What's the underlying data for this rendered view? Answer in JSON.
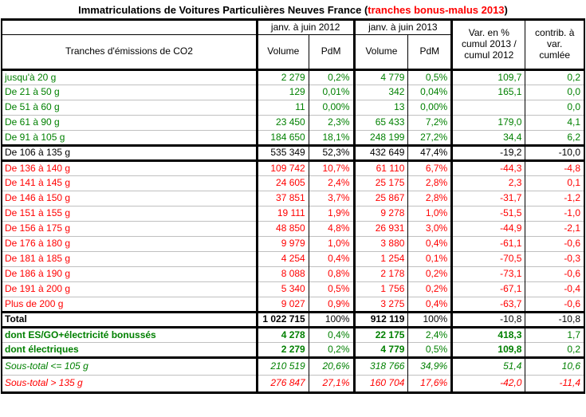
{
  "title": {
    "prefix": "Immatriculations de Voitures Particulières Neuves France (",
    "highlight": "tranches bonus-malus 2013",
    "suffix": ")"
  },
  "header": {
    "tranches": "Tranches d'émissions de CO2",
    "period_2012": "janv. à juin 2012",
    "period_2013": "janv. à juin 2013",
    "volume": "Volume",
    "pdm": "PdM",
    "var": "Var. en %\ncumul 2013 /\ncumul 2012",
    "contrib": "contrib. à\nvar.\ncumlée"
  },
  "colors": {
    "bonus_green": "#008000",
    "malus_red": "#ff0000",
    "neutral_black": "#000000",
    "gridline_gray": "#c0c0c0"
  },
  "chart_data": {
    "type": "table",
    "title": "Immatriculations de Voitures Particulières Neuves France (tranches bonus-malus 2013)",
    "columns": [
      "Tranches d'émissions de CO2",
      "Volume janv. à juin 2012",
      "PdM janv. à juin 2012",
      "Volume janv. à juin 2013",
      "PdM janv. à juin 2013",
      "Var. en % cumul 2013 / cumul 2012",
      "contrib. à var. cumlée"
    ],
    "rows": [
      {
        "label": "jusqu'à 20 g",
        "v2012": "2 279",
        "pdm2012": "0,2%",
        "v2013": "4 779",
        "pdm2013": "0,5%",
        "var": "109,7",
        "contrib": "0,2",
        "color": "green",
        "bold": [],
        "italic": false,
        "thick_top": true,
        "tall": false
      },
      {
        "label": "De 21 à 50 g",
        "v2012": "129",
        "pdm2012": "0,01%",
        "v2013": "342",
        "pdm2013": "0,04%",
        "var": "165,1",
        "contrib": "0,0",
        "color": "green",
        "bold": [],
        "italic": false,
        "thick_top": false,
        "tall": false
      },
      {
        "label": "De 51 à 60 g",
        "v2012": "11",
        "pdm2012": "0,00%",
        "v2013": "13",
        "pdm2013": "0,00%",
        "var": "",
        "contrib": "0,0",
        "color": "green",
        "bold": [],
        "italic": false,
        "thick_top": false,
        "tall": false
      },
      {
        "label": "De 61 à 90 g",
        "v2012": "23 450",
        "pdm2012": "2,3%",
        "v2013": "65 433",
        "pdm2013": "7,2%",
        "var": "179,0",
        "contrib": "4,1",
        "color": "green",
        "bold": [],
        "italic": false,
        "thick_top": false,
        "tall": false
      },
      {
        "label": "De 91 à 105 g",
        "v2012": "184 650",
        "pdm2012": "18,1%",
        "v2013": "248 199",
        "pdm2013": "27,2%",
        "var": "34,4",
        "contrib": "6,2",
        "color": "green",
        "bold": [],
        "italic": false,
        "thick_top": false,
        "tall": false
      },
      {
        "label": "De 106 à 135 g",
        "v2012": "535 349",
        "pdm2012": "52,3%",
        "v2013": "432 649",
        "pdm2013": "47,4%",
        "var": "-19,2",
        "contrib": "-10,0",
        "color": "black",
        "bold": [],
        "italic": false,
        "thick_top": true,
        "tall": false
      },
      {
        "label": "De 136 à 140 g",
        "v2012": "109 742",
        "pdm2012": "10,7%",
        "v2013": "61 110",
        "pdm2013": "6,7%",
        "var": "-44,3",
        "contrib": "-4,8",
        "color": "red",
        "bold": [],
        "italic": false,
        "thick_top": true,
        "tall": false
      },
      {
        "label": "De 141 à 145 g",
        "v2012": "24 605",
        "pdm2012": "2,4%",
        "v2013": "25 175",
        "pdm2013": "2,8%",
        "var": "2,3",
        "contrib": "0,1",
        "color": "red",
        "bold": [],
        "italic": false,
        "thick_top": false,
        "tall": false
      },
      {
        "label": "De 146 à 150 g",
        "v2012": "37 851",
        "pdm2012": "3,7%",
        "v2013": "25 867",
        "pdm2013": "2,8%",
        "var": "-31,7",
        "contrib": "-1,2",
        "color": "red",
        "bold": [],
        "italic": false,
        "thick_top": false,
        "tall": false
      },
      {
        "label": "De 151 à 155 g",
        "v2012": "19 111",
        "pdm2012": "1,9%",
        "v2013": "9 278",
        "pdm2013": "1,0%",
        "var": "-51,5",
        "contrib": "-1,0",
        "color": "red",
        "bold": [],
        "italic": false,
        "thick_top": false,
        "tall": false
      },
      {
        "label": "De 156 à 175 g",
        "v2012": "48 850",
        "pdm2012": "4,8%",
        "v2013": "26 931",
        "pdm2013": "3,0%",
        "var": "-44,9",
        "contrib": "-2,1",
        "color": "red",
        "bold": [],
        "italic": false,
        "thick_top": false,
        "tall": false
      },
      {
        "label": "De 176 à 180 g",
        "v2012": "9 979",
        "pdm2012": "1,0%",
        "v2013": "3 880",
        "pdm2013": "0,4%",
        "var": "-61,1",
        "contrib": "-0,6",
        "color": "red",
        "bold": [],
        "italic": false,
        "thick_top": false,
        "tall": false
      },
      {
        "label": "De 181 à 185 g",
        "v2012": "4 254",
        "pdm2012": "0,4%",
        "v2013": "1 254",
        "pdm2013": "0,1%",
        "var": "-70,5",
        "contrib": "-0,3",
        "color": "red",
        "bold": [],
        "italic": false,
        "thick_top": false,
        "tall": false
      },
      {
        "label": "De 186 à 190 g",
        "v2012": "8 088",
        "pdm2012": "0,8%",
        "v2013": "2 178",
        "pdm2013": "0,2%",
        "var": "-73,1",
        "contrib": "-0,6",
        "color": "red",
        "bold": [],
        "italic": false,
        "thick_top": false,
        "tall": false
      },
      {
        "label": "De 191 à 200 g",
        "v2012": "5 340",
        "pdm2012": "0,5%",
        "v2013": "1 756",
        "pdm2013": "0,2%",
        "var": "-67,1",
        "contrib": "-0,4",
        "color": "red",
        "bold": [],
        "italic": false,
        "thick_top": false,
        "tall": false
      },
      {
        "label": "Plus de 200 g",
        "v2012": "9 027",
        "pdm2012": "0,9%",
        "v2013": "3 275",
        "pdm2013": "0,4%",
        "var": "-63,7",
        "contrib": "-0,6",
        "color": "red",
        "bold": [],
        "italic": false,
        "thick_top": false,
        "tall": false
      },
      {
        "label": "Total",
        "v2012": "1 022 715",
        "pdm2012": "100%",
        "v2013": "912 119",
        "pdm2013": "100%",
        "var": "-10,8",
        "contrib": "-10,8",
        "color": "black",
        "bold": [
          "label",
          "v2012",
          "v2013"
        ],
        "italic": false,
        "thick_top": true,
        "tall": false
      },
      {
        "label": "dont ES/GO+électricité bonussés",
        "v2012": "4 278",
        "pdm2012": "0,4%",
        "v2013": "22 175",
        "pdm2013": "2,4%",
        "var": "418,3",
        "contrib": "1,7",
        "color": "green",
        "bold": [
          "label",
          "v2012",
          "v2013",
          "var"
        ],
        "italic": false,
        "thick_top": true,
        "tall": false
      },
      {
        "label": "dont électriques",
        "v2012": "2 279",
        "pdm2012": "0,2%",
        "v2013": "4 779",
        "pdm2013": "0,5%",
        "var": "109,8",
        "contrib": "0,2",
        "color": "green",
        "bold": [
          "label",
          "v2012",
          "v2013",
          "var"
        ],
        "italic": false,
        "thick_top": false,
        "tall": false
      },
      {
        "label": "Sous-total <= 105 g",
        "v2012": "210 519",
        "pdm2012": "20,6%",
        "v2013": "318 766",
        "pdm2013": "34,9%",
        "var": "51,4",
        "contrib": "10,6",
        "color": "green",
        "bold": [],
        "italic": true,
        "thick_top": true,
        "tall": true
      },
      {
        "label": "Sous-total > 135 g",
        "v2012": "276 847",
        "pdm2012": "27,1%",
        "v2013": "160 704",
        "pdm2013": "17,6%",
        "var": "-42,0",
        "contrib": "-11,4",
        "color": "red",
        "bold": [],
        "italic": true,
        "thick_top": false,
        "tall": true
      }
    ]
  }
}
